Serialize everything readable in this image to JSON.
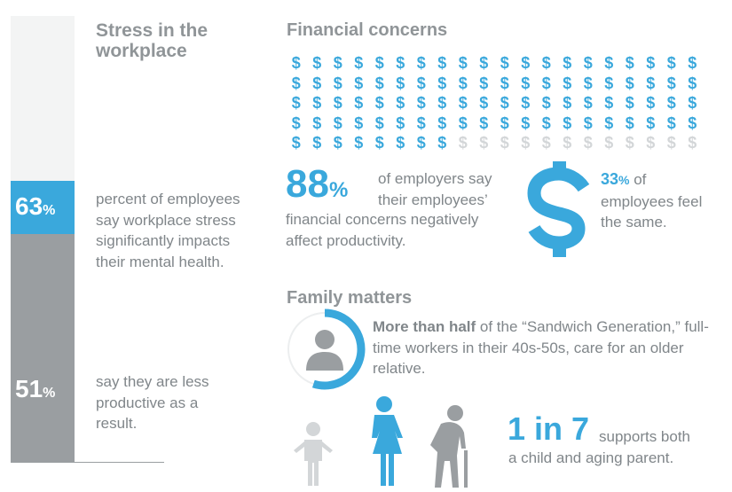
{
  "stress": {
    "title": "Stress in the workplace",
    "stat1": {
      "number": "63",
      "unit": "%",
      "text": "percent of employees say workplace stress significantly impacts their mental health."
    },
    "stat2": {
      "number": "51",
      "unit": "%",
      "text": "say they are less productive as a result."
    }
  },
  "financial": {
    "title": "Financial concerns",
    "dollar_glyph": "$",
    "grid": {
      "rows": 5,
      "cols": 20,
      "highlighted": 88
    },
    "stat1": {
      "number": "88",
      "unit": "%",
      "text_a": "of employers say their employees’",
      "text_b": "financial concerns negatively affect productivity."
    },
    "stat2": {
      "number": "33",
      "unit": "%",
      "text_a": "of",
      "text_b": "employees feel the same."
    },
    "icon": "dollar-sign-icon"
  },
  "family": {
    "title": "Family matters",
    "ring_fraction": 0.55,
    "bold_lead": "More than half",
    "text": " of the “Sandwich Generation,” full-time workers in their 40s-50s, care for an older relative.",
    "big": "1 in 7",
    "supports_a": "supports both",
    "supports_b": "a child and aging parent."
  },
  "colors": {
    "accent": "#3aa8dc",
    "gray": "#9a9ea1",
    "light_gray": "#d3d6d8"
  }
}
